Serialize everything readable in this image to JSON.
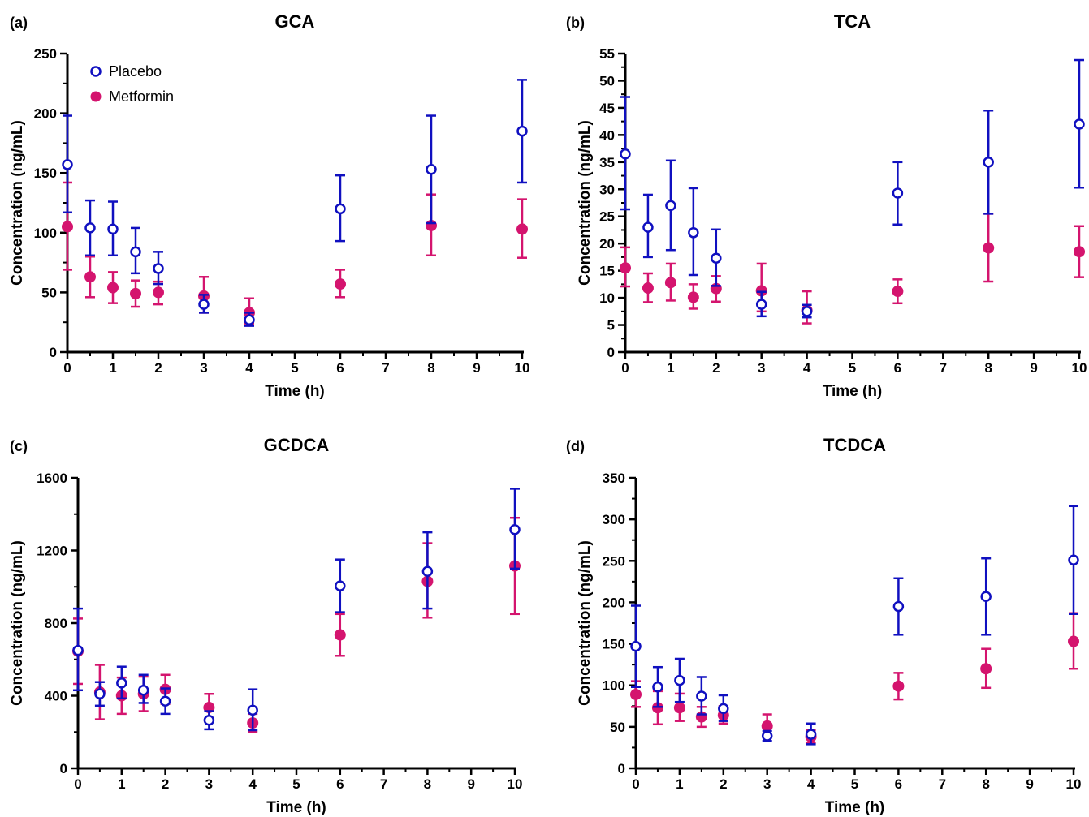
{
  "colors": {
    "placebo": "#1010c0",
    "metformin": "#d4146e",
    "axis": "#000000"
  },
  "legend": {
    "placement": "top-left",
    "items": [
      {
        "label": "Placebo",
        "marker": "open-circle",
        "color": "#1010c0"
      },
      {
        "label": "Metformin",
        "marker": "filled-circle",
        "color": "#d4146e"
      }
    ]
  },
  "chart_data": [
    {
      "type": "scatter",
      "panel": "(a)",
      "title": "GCA",
      "xlabel": "Time (h)",
      "ylabel": "Concentration (ng/mL)",
      "xlim": [
        0,
        10
      ],
      "ylim": [
        0,
        250
      ],
      "xticks": [
        0,
        1,
        2,
        3,
        4,
        5,
        6,
        7,
        8,
        9,
        10
      ],
      "yticks": [
        0,
        50,
        100,
        150,
        200,
        250
      ],
      "series": [
        {
          "name": "Placebo",
          "x": [
            0,
            0.5,
            1,
            1.5,
            2,
            3,
            4,
            6,
            8,
            10
          ],
          "y": [
            157,
            104,
            103,
            84,
            70,
            40,
            27,
            120,
            153,
            185
          ],
          "err_low": [
            117,
            81,
            81,
            66,
            57,
            33,
            22,
            93,
            108,
            142
          ],
          "err_high": [
            198,
            127,
            126,
            104,
            84,
            48,
            33,
            148,
            198,
            228
          ]
        },
        {
          "name": "Metformin",
          "x": [
            0,
            0.5,
            1,
            1.5,
            2,
            3,
            4,
            6,
            8,
            10
          ],
          "y": [
            105,
            63,
            54,
            49,
            50,
            47,
            33,
            57,
            106,
            103
          ],
          "err_low": [
            69,
            46,
            41,
            38,
            40,
            33,
            24,
            46,
            81,
            79
          ],
          "err_high": [
            142,
            80,
            67,
            60,
            59,
            63,
            45,
            69,
            132,
            128
          ]
        }
      ]
    },
    {
      "type": "scatter",
      "panel": "(b)",
      "title": "TCA",
      "xlabel": "Time (h)",
      "ylabel": "Concentration (ng/mL)",
      "xlim": [
        0,
        10
      ],
      "ylim": [
        0,
        55
      ],
      "xticks": [
        0,
        1,
        2,
        3,
        4,
        5,
        6,
        7,
        8,
        9,
        10
      ],
      "yticks": [
        0,
        5,
        10,
        15,
        20,
        25,
        30,
        35,
        40,
        45,
        50,
        55
      ],
      "series": [
        {
          "name": "Placebo",
          "x": [
            0,
            0.5,
            1,
            1.5,
            2,
            3,
            4,
            6,
            8,
            10
          ],
          "y": [
            36.5,
            23,
            27,
            22,
            17.3,
            8.8,
            7.5,
            29.3,
            35,
            42
          ],
          "err_low": [
            26.3,
            17.5,
            18.8,
            14.2,
            12.2,
            6.6,
            6.4,
            23.5,
            25.5,
            30.3
          ],
          "err_high": [
            47,
            29,
            35.3,
            30.2,
            22.6,
            11.1,
            8.7,
            35,
            44.5,
            53.8
          ]
        },
        {
          "name": "Metformin",
          "x": [
            0,
            0.5,
            1,
            1.5,
            2,
            3,
            4,
            6,
            8,
            10
          ],
          "y": [
            15.5,
            11.8,
            12.8,
            10.1,
            11.7,
            11.3,
            7.7,
            11.2,
            19.2,
            18.5
          ],
          "err_low": [
            12.1,
            9.2,
            9.5,
            8,
            9.3,
            7.5,
            5.3,
            9,
            13,
            13.8
          ],
          "err_high": [
            19.3,
            14.5,
            16.3,
            12.5,
            14,
            16.3,
            11.2,
            13.4,
            25.5,
            23.2
          ]
        }
      ]
    },
    {
      "type": "scatter",
      "panel": "(c)",
      "title": "GCDCA",
      "xlabel": "Time (h)",
      "ylabel": "Concentration (ng/mL)",
      "xlim": [
        0,
        10
      ],
      "ylim": [
        0,
        1600
      ],
      "xticks": [
        0,
        1,
        2,
        3,
        4,
        5,
        6,
        7,
        8,
        9,
        10
      ],
      "yticks": [
        0,
        400,
        800,
        1200,
        1600
      ],
      "series": [
        {
          "name": "Placebo",
          "x": [
            0,
            0.5,
            1,
            1.5,
            2,
            3,
            4,
            6,
            8,
            10
          ],
          "y": [
            650,
            410,
            470,
            430,
            370,
            265,
            320,
            1005,
            1085,
            1315
          ],
          "err_low": [
            430,
            345,
            385,
            360,
            300,
            215,
            210,
            860,
            880,
            1100
          ],
          "err_high": [
            880,
            475,
            560,
            515,
            440,
            315,
            435,
            1150,
            1300,
            1540
          ]
        },
        {
          "name": "Metformin",
          "x": [
            0,
            0.5,
            1,
            1.5,
            2,
            3,
            4,
            6,
            8,
            10
          ],
          "y": [
            645,
            420,
            400,
            410,
            435,
            335,
            250,
            735,
            1030,
            1115
          ],
          "err_low": [
            465,
            270,
            300,
            315,
            355,
            265,
            200,
            620,
            830,
            850
          ],
          "err_high": [
            825,
            570,
            500,
            505,
            515,
            410,
            300,
            850,
            1240,
            1380
          ]
        }
      ]
    },
    {
      "type": "scatter",
      "panel": "(d)",
      "title": "TCDCA",
      "xlabel": "Time (h)",
      "ylabel": "Concentration (ng/mL)",
      "xlim": [
        0,
        10
      ],
      "ylim": [
        0,
        350
      ],
      "xticks": [
        0,
        1,
        2,
        3,
        4,
        5,
        6,
        7,
        8,
        9,
        10
      ],
      "yticks": [
        0,
        50,
        100,
        150,
        200,
        250,
        300,
        350
      ],
      "series": [
        {
          "name": "Placebo",
          "x": [
            0,
            0.5,
            1,
            1.5,
            2,
            3,
            4,
            6,
            8,
            10
          ],
          "y": [
            147,
            98,
            106,
            87,
            72,
            39,
            41,
            195,
            207,
            251
          ],
          "err_low": [
            98,
            74,
            80,
            65,
            57,
            33,
            29,
            161,
            161,
            186
          ],
          "err_high": [
            196,
            122,
            132,
            110,
            88,
            45,
            54,
            229,
            253,
            316
          ]
        },
        {
          "name": "Metformin",
          "x": [
            0,
            0.5,
            1,
            1.5,
            2,
            3,
            4,
            6,
            8,
            10
          ],
          "y": [
            89,
            73,
            73,
            62,
            64,
            51,
            38,
            99,
            120,
            153
          ],
          "err_low": [
            74,
            53,
            57,
            50,
            54,
            40,
            31,
            83,
            97,
            120
          ],
          "err_high": [
            105,
            93,
            90,
            74,
            75,
            65,
            46,
            115,
            144,
            187
          ]
        }
      ]
    }
  ]
}
